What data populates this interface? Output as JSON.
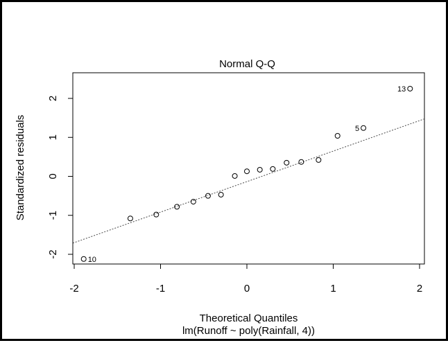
{
  "chart_data": {
    "type": "scatter",
    "title": "Normal Q-Q",
    "xlabel": "Theoretical Quantiles",
    "ylabel": "Standardized residuals",
    "subtitle": "lm(Runoff ~ poly(Rainfall, 4))",
    "xlim": [
      -2.0,
      2.0
    ],
    "ylim": [
      -2.2,
      2.4
    ],
    "x_ticks": [
      -2,
      -1,
      0,
      1,
      2
    ],
    "x_tick_labels": [
      "-2",
      "-1",
      "0",
      "1",
      "2"
    ],
    "y_ticks": [
      -2,
      -1,
      0,
      1,
      2
    ],
    "y_tick_labels": [
      "-2",
      "-1",
      "0",
      "1",
      "2"
    ],
    "grid": false,
    "reference_line": {
      "style": "dotted",
      "points": [
        [
          -2.0,
          -1.7
        ],
        [
          2.0,
          1.43
        ]
      ]
    },
    "points": [
      {
        "x": -1.89,
        "y": -2.12,
        "label": "10"
      },
      {
        "x": -1.35,
        "y": -1.08,
        "label": ""
      },
      {
        "x": -1.05,
        "y": -0.98,
        "label": ""
      },
      {
        "x": -0.81,
        "y": -0.78,
        "label": ""
      },
      {
        "x": -0.62,
        "y": -0.65,
        "label": ""
      },
      {
        "x": -0.45,
        "y": -0.5,
        "label": ""
      },
      {
        "x": -0.3,
        "y": -0.47,
        "label": ""
      },
      {
        "x": -0.14,
        "y": 0.01,
        "label": ""
      },
      {
        "x": 0.0,
        "y": 0.13,
        "label": ""
      },
      {
        "x": 0.15,
        "y": 0.17,
        "label": ""
      },
      {
        "x": 0.3,
        "y": 0.19,
        "label": ""
      },
      {
        "x": 0.46,
        "y": 0.35,
        "label": ""
      },
      {
        "x": 0.63,
        "y": 0.37,
        "label": ""
      },
      {
        "x": 0.83,
        "y": 0.42,
        "label": ""
      },
      {
        "x": 1.05,
        "y": 1.04,
        "label": ""
      },
      {
        "x": 1.35,
        "y": 1.24,
        "label": "5"
      },
      {
        "x": 1.89,
        "y": 2.25,
        "label": "13"
      }
    ]
  }
}
